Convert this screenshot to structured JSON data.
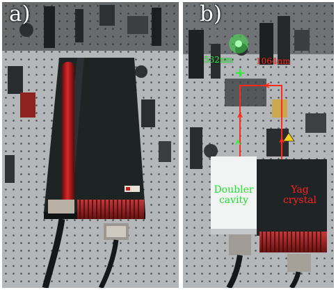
{
  "panels": [
    {
      "label": "a)"
    },
    {
      "label": "b)"
    }
  ],
  "annotations": {
    "green_wavelength": "532nm",
    "red_wavelength": "1064nm",
    "doubler_label": "Doubler\ncavity",
    "yag_label": "Yag\ncrystal"
  },
  "colors": {
    "green_beam": "#2ef03a",
    "red_beam": "#ff2a1a",
    "laser_body": "#1e2324",
    "red_tube": "#b51718",
    "table": "#b4b7b9"
  }
}
